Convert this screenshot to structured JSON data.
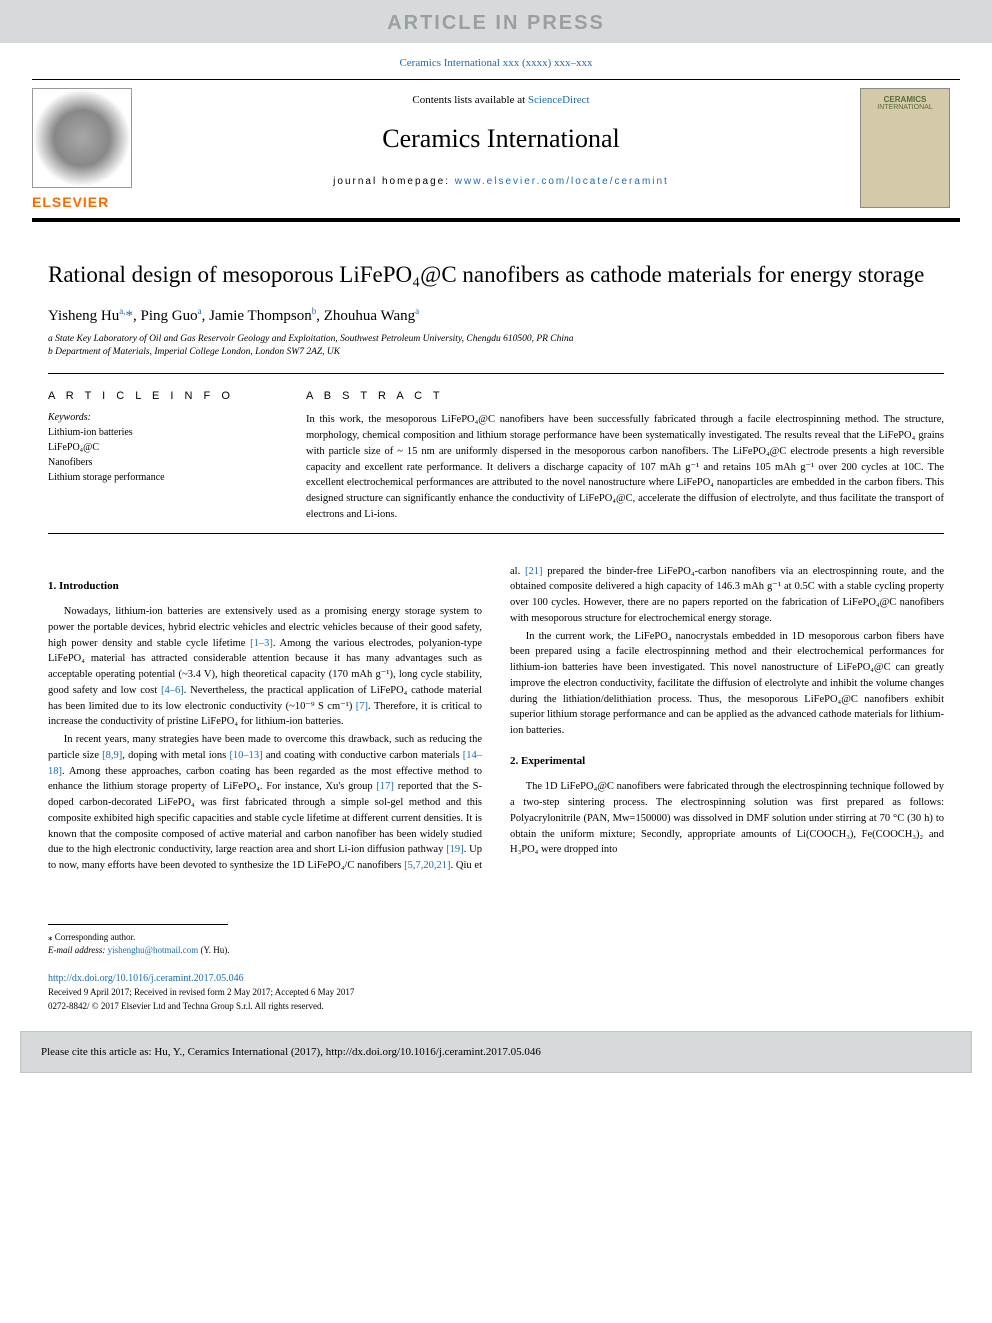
{
  "banner": {
    "article_in_press": "ARTICLE IN PRESS",
    "journal_ref": "Ceramics International xxx (xxxx) xxx–xxx"
  },
  "header": {
    "contents_prefix": "Contents lists available at ",
    "contents_link": "ScienceDirect",
    "journal_name": "Ceramics International",
    "homepage_prefix": "journal homepage: ",
    "homepage_link": "www.elsevier.com/locate/ceramint",
    "elsevier_logo": "ELSEVIER",
    "cover_title": "CERAMICS",
    "cover_subtitle": "INTERNATIONAL"
  },
  "article": {
    "title": "Rational design of mesoporous LiFePO₄@C nanofibers as cathode materials for energy storage",
    "authors_html": "Yisheng Hu<sup>a,</sup><span class='corr'>*</span>, Ping Guo<sup>a</sup>, Jamie Thompson<sup>b</sup>, Zhouhua Wang<sup>a</sup>",
    "affil_a": "a State Key Laboratory of Oil and Gas Reservoir Geology and Exploitation, Southwest Petroleum University, Chengdu 610500, PR China",
    "affil_b": "b Department of Materials, Imperial College London, London SW7 2AZ, UK"
  },
  "info": {
    "article_info_label": "A R T I C L E  I N F O",
    "keywords_label": "Keywords:",
    "keywords": [
      "Lithium-ion batteries",
      "LiFePO₄@C",
      "Nanofibers",
      "Lithium storage performance"
    ]
  },
  "abstract": {
    "label": "A B S T R A C T",
    "text": "In this work, the mesoporous LiFePO₄@C nanofibers have been successfully fabricated through a facile electrospinning method. The structure, morphology, chemical composition and lithium storage performance have been systematically investigated. The results reveal that the LiFePO₄ grains with particle size of ~ 15 nm are uniformly dispersed in the mesoporous carbon nanofibers. The LiFePO₄@C electrode presents a high reversible capacity and excellent rate performance. It delivers a discharge capacity of 107 mAh g⁻¹ and retains 105 mAh g⁻¹ over 200 cycles at 10C. The excellent electrochemical performances are attributed to the novel nanostructure where LiFePO₄ nanoparticles are embedded in the carbon fibers. This designed structure can significantly enhance the conductivity of LiFePO₄@C, accelerate the diffusion of electrolyte, and thus facilitate the transport of electrons and Li-ions."
  },
  "sections": {
    "intro_heading": "1. Introduction",
    "intro_p1": "Nowadays, lithium-ion batteries are extensively used as a promising energy storage system to power the portable devices, hybrid electric vehicles and electric vehicles because of their good safety, high power density and stable cycle lifetime ",
    "intro_p1_cite1": "[1–3]",
    "intro_p1b": ". Among the various electrodes, polyanion-type LiFePO₄ material has attracted considerable attention because it has many advantages such as acceptable operating potential (~3.4 V), high theoretical capacity (170 mAh g⁻¹), long cycle stability, good safety and low cost ",
    "intro_p1_cite2": "[4–6]",
    "intro_p1c": ". Nevertheless, the practical application of LiFePO₄ cathode material has been limited due to its low electronic conductivity (~10⁻⁹ S cm⁻¹) ",
    "intro_p1_cite3": "[7]",
    "intro_p1d": ". Therefore, it is critical to increase the conductivity of pristine LiFePO₄ for lithium-ion batteries.",
    "intro_p2a": "In recent years, many strategies have been made to overcome this drawback, such as reducing the particle size ",
    "intro_p2_cite1": "[8,9]",
    "intro_p2b": ", doping with metal ions ",
    "intro_p2_cite2": "[10–13]",
    "intro_p2c": " and coating with conductive carbon materials ",
    "intro_p2_cite3": "[14–18]",
    "intro_p2d": ". Among these approaches, carbon coating has been regarded as the most effective method to enhance the lithium storage property of LiFePO₄. For instance, Xu's group ",
    "intro_p2_cite4": "[17]",
    "intro_p2e": " reported that the S-doped carbon-decorated LiFePO₄ was first fabricated through a simple sol-gel method and this composite exhibited high specific capacities and stable cycle lifetime at different current densities. It is known that the composite composed of active material and carbon nanofiber has been widely studied due to the high electronic conductivity, large reaction area and short Li-ion diffusion pathway ",
    "intro_p2_cite5": "[19]",
    "intro_p2f": ". Up to now, many efforts have been devoted to synthesize the 1D LiFePO₄/C nanofibers ",
    "intro_p2_cite6": "[5,7,20,21]",
    "intro_p2g": ". Qiu et al. ",
    "intro_p2_cite7": "[21]",
    "intro_p2h": " prepared the binder-free LiFePO₄-carbon nanofibers via an electrospinning route, and the obtained composite delivered a high capacity of 146.3 mAh g⁻¹ at 0.5C with a stable cycling property over 100 cycles. However, there are no papers reported on the fabrication of LiFePO₄@C nanofibers with mesoporous structure for electrochemical energy storage.",
    "intro_p3": "In the current work, the LiFePO₄ nanocrystals embedded in 1D mesoporous carbon fibers have been prepared using a facile electrospinning method and their electrochemical performances for lithium-ion batteries have been investigated. This novel nanostructure of LiFePO₄@C can greatly improve the electron conductivity, facilitate the diffusion of electrolyte and inhibit the volume changes during the lithiation/delithiation process. Thus, the mesoporous LiFePO₄@C nanofibers exhibit superior lithium storage performance and can be applied as the advanced cathode materials for lithium-ion batteries.",
    "exp_heading": "2. Experimental",
    "exp_p1": "The 1D LiFePO₄@C nanofibers were fabricated through the electrospinning technique followed by a two-step sintering process. The electrospinning solution was first prepared as follows: Polyacrylonitrile (PAN, Mw=150000) was dissolved in DMF solution under stirring at 70 °C (30 h) to obtain the uniform mixture; Secondly, appropriate amounts of Li(COOCH₃), Fe(COOCH₃)₂ and H₃PO₄ were dropped into"
  },
  "footer": {
    "corr_label": "⁎ Corresponding author.",
    "email_label": "E-mail address: ",
    "email": "yishenghu@hotmail.com",
    "email_suffix": " (Y. Hu).",
    "doi": "http://dx.doi.org/10.1016/j.ceramint.2017.05.046",
    "dates": "Received 9 April 2017; Received in revised form 2 May 2017; Accepted 6 May 2017",
    "copyright": "0272-8842/ © 2017 Elsevier Ltd and Techna Group S.r.l. All rights reserved."
  },
  "citation_bar": "Please cite this article as: Hu, Y., Ceramics International (2017), http://dx.doi.org/10.1016/j.ceramint.2017.05.046",
  "colors": {
    "link": "#1a6bb5",
    "banner_bg": "#d6dadb",
    "banner_text": "#9b9fa0",
    "elsevier_orange": "#ff6a00"
  }
}
